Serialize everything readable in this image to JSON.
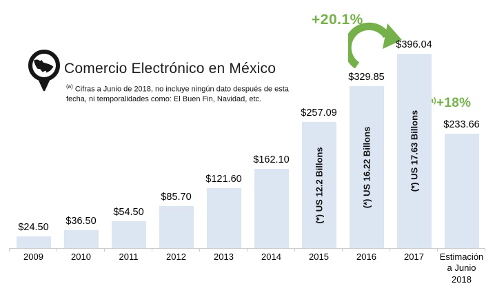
{
  "header": {
    "logo": "mexico-map-pin-icon",
    "title": "Comercio Electrónico en México",
    "footnote_marker": "(a)",
    "footnote_text": "Cifras a Junio de 2018, no incluye ningún dato después de esta fecha, ni temporalidades como: El Buen Fin, Navidad, etc."
  },
  "annotations": {
    "yoy_growth_label": "+20.1%",
    "estimate_marker": "(a)",
    "estimate_growth_label": "+18%"
  },
  "colors": {
    "bar_fill": "#dce6f2",
    "accent_green": "#76b04a",
    "axis_line": "#cccccc",
    "text": "#111111"
  },
  "chart_data": {
    "type": "bar",
    "title": "Comercio Electrónico en México",
    "categories": [
      "2009",
      "2010",
      "2011",
      "2012",
      "2013",
      "2014",
      "2015",
      "2016",
      "2017",
      "Estimación a Junio 2018"
    ],
    "values": [
      24.5,
      36.5,
      54.5,
      85.7,
      121.6,
      162.1,
      257.09,
      329.85,
      396.04,
      233.66
    ],
    "value_labels": [
      "$24.50",
      "$36.50",
      "$54.50",
      "$85.70",
      "$121.60",
      "$162.10",
      "$257.09",
      "$329.85",
      "$396.04",
      "$233.66"
    ],
    "bar_inner_labels": [
      null,
      null,
      null,
      null,
      null,
      null,
      "(*) US 12.2 Billons",
      "(*) US 16.22 Billons",
      "(*) US 17.63 Billons",
      null
    ],
    "xlabel": "",
    "ylabel": "",
    "grid": false,
    "legend": false
  }
}
